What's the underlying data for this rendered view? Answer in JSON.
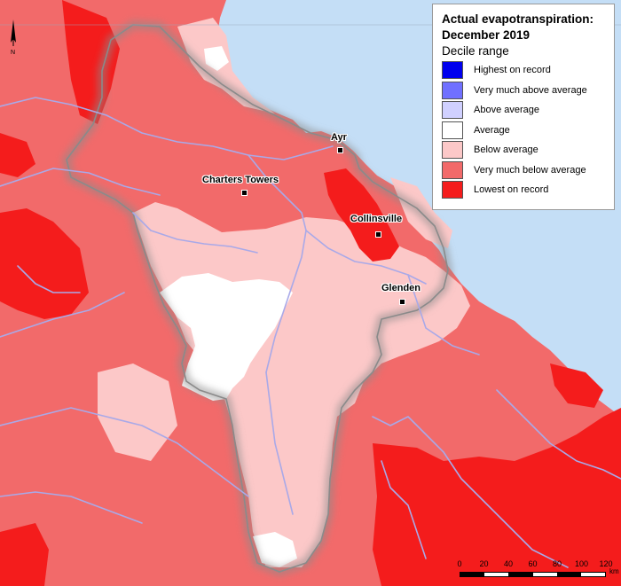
{
  "title_line1": "Actual evapotranspiration:",
  "title_line2": "December 2019",
  "legend_subtitle": "Decile range",
  "legend": [
    {
      "label": "Highest on record",
      "color": "#0000ee"
    },
    {
      "label": "Very much above average",
      "color": "#7070ff"
    },
    {
      "label": "Above average",
      "color": "#d0d0ff"
    },
    {
      "label": "Average",
      "color": "#ffffff"
    },
    {
      "label": "Below average",
      "color": "#fcc8c8"
    },
    {
      "label": "Very much below average",
      "color": "#f26a6a"
    },
    {
      "label": "Lowest on record",
      "color": "#f41c1c"
    }
  ],
  "towns": [
    "Ayr",
    "Charters Towers",
    "Collinsville",
    "Glenden"
  ],
  "scale": {
    "ticks": [
      "0",
      "20",
      "40",
      "60",
      "80",
      "100",
      "120"
    ],
    "unit": "km"
  },
  "north_label": "N",
  "colors": {
    "sea": "#c4def6",
    "river": "#a9a9e8",
    "boundary": "#8a8a8a"
  }
}
